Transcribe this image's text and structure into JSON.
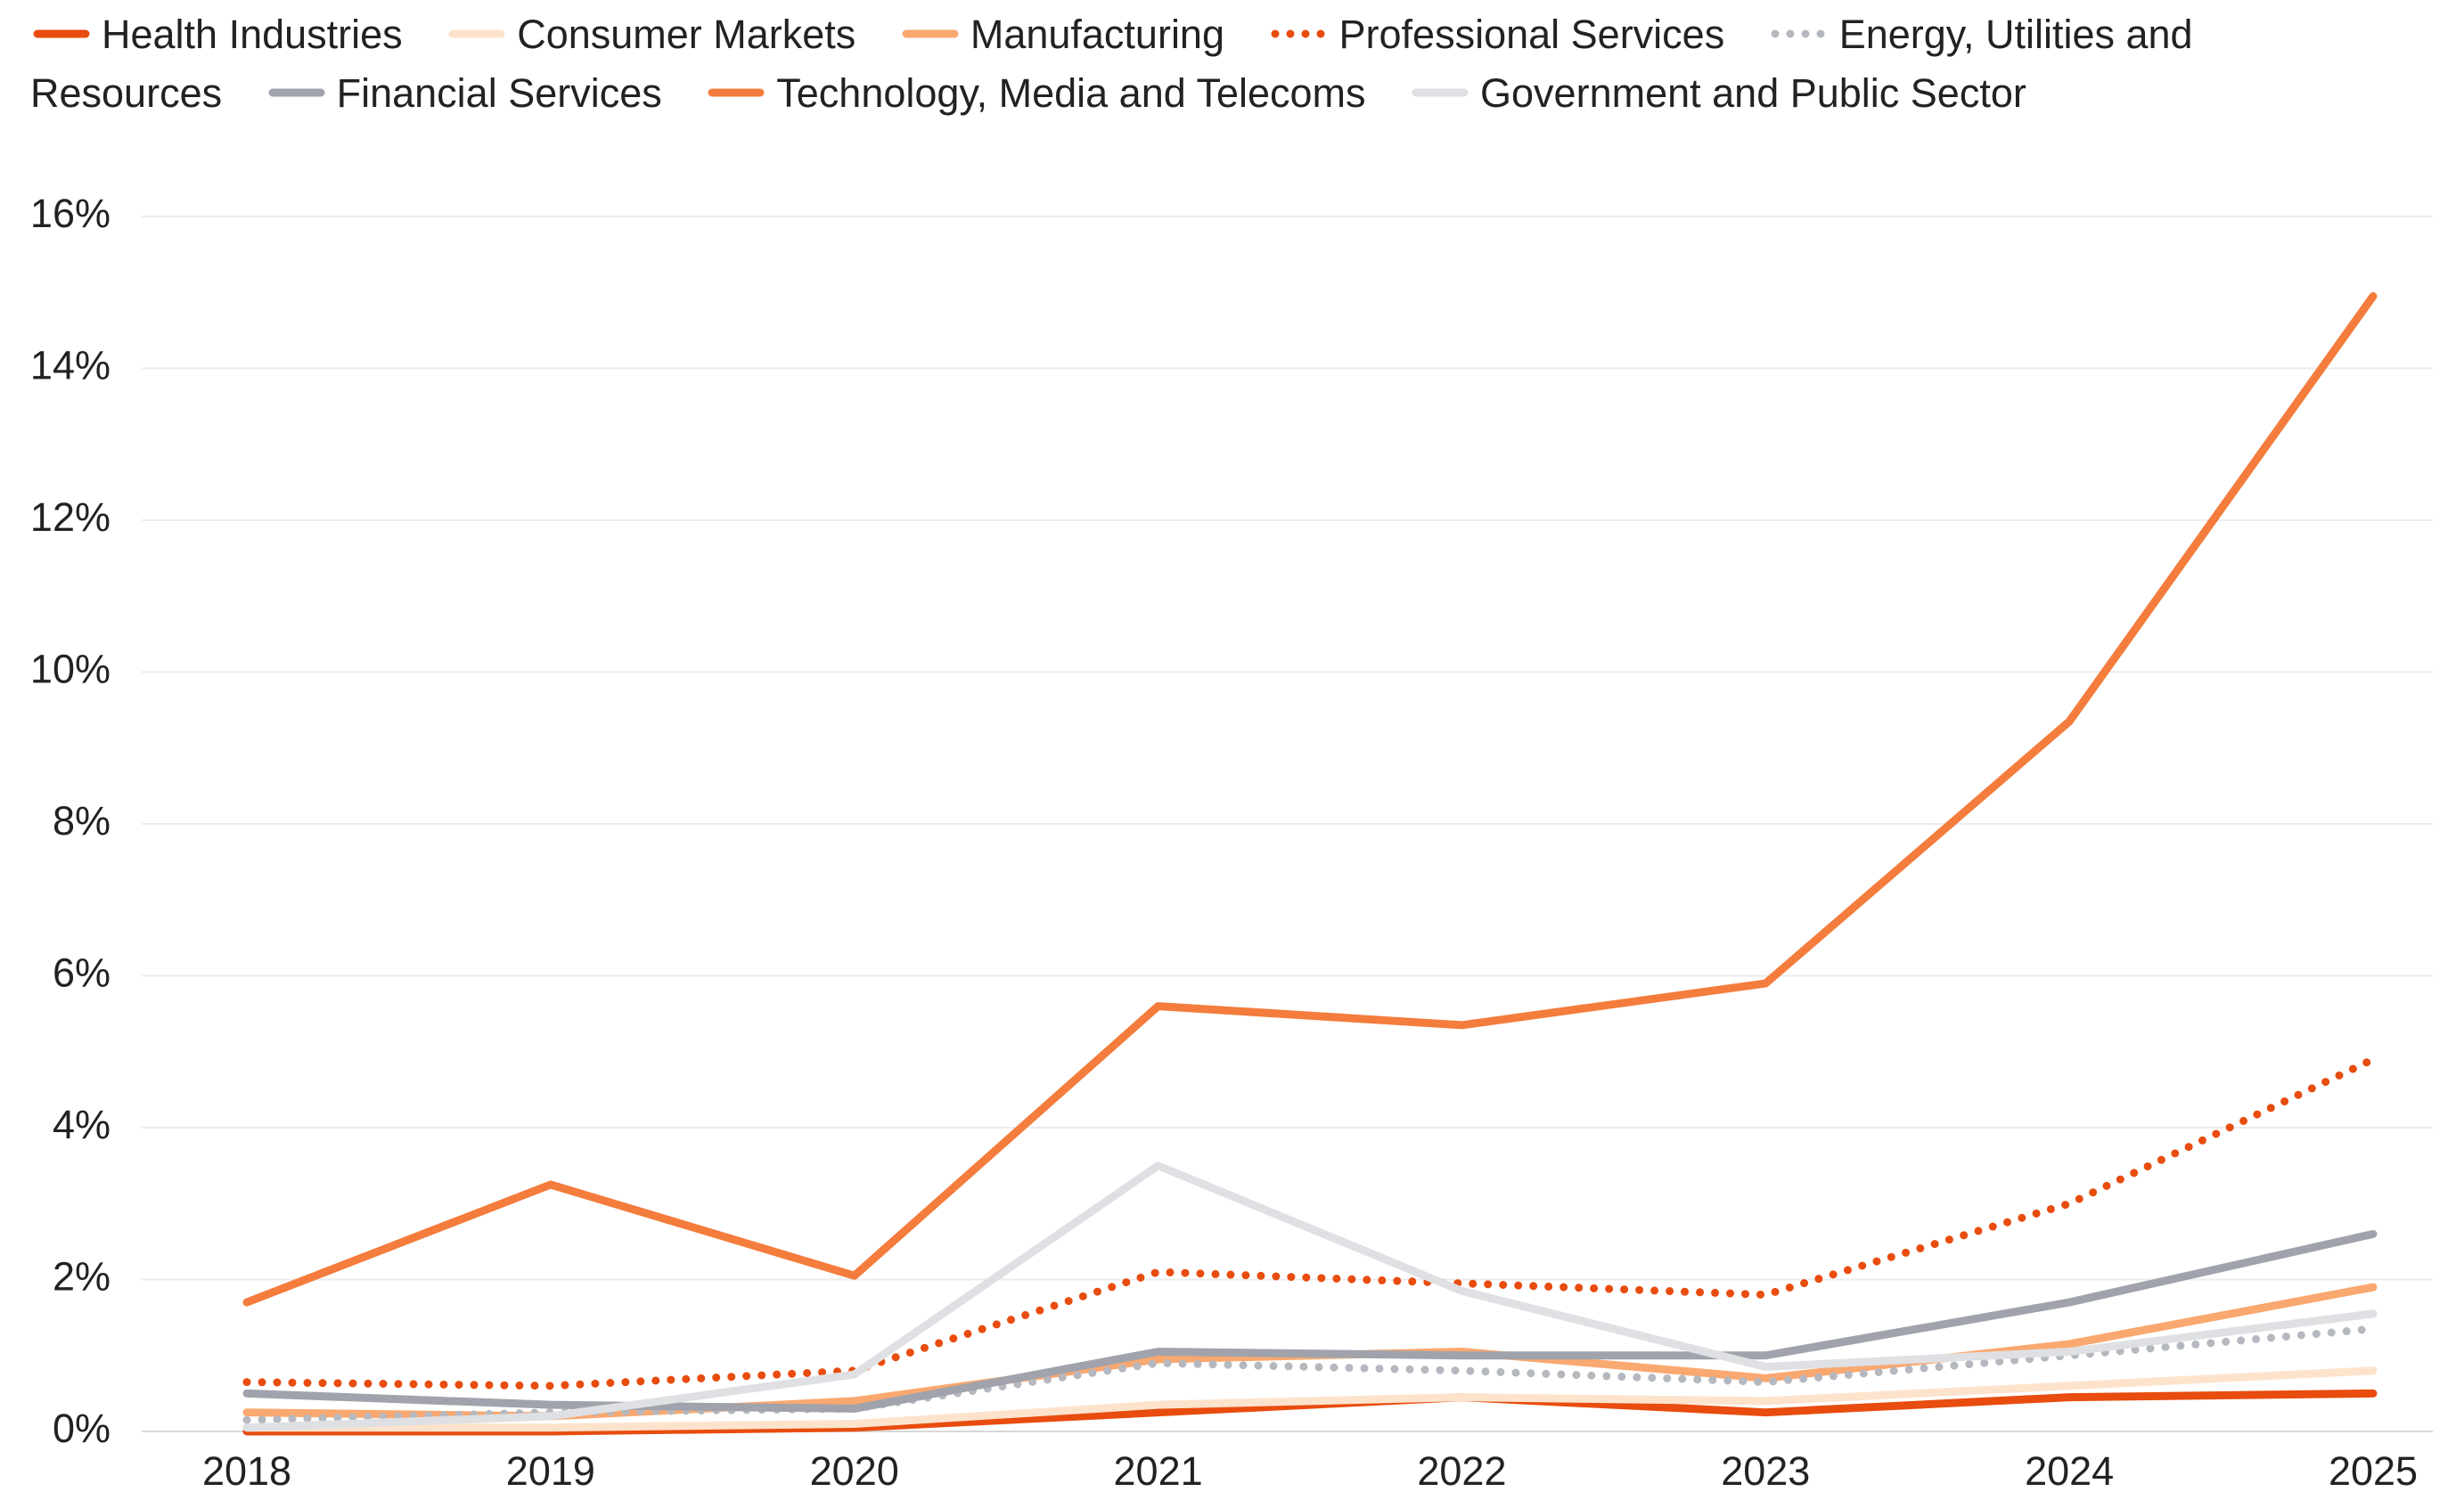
{
  "chart_data": {
    "type": "line",
    "categories": [
      "2018",
      "2019",
      "2020",
      "2021",
      "2022",
      "2023",
      "2024",
      "2025"
    ],
    "series": [
      {
        "name": "Health Industries",
        "color": "#e84c0e",
        "dotted": false,
        "values": [
          0,
          0,
          0.05,
          0.25,
          0.45,
          0.25,
          0.45,
          0.5
        ]
      },
      {
        "name": "Consumer Markets",
        "color": "#fde3cc",
        "dotted": false,
        "values": [
          0.05,
          0.05,
          0.1,
          0.35,
          0.45,
          0.4,
          0.6,
          0.8
        ]
      },
      {
        "name": "Manufacturing",
        "color": "#f9a870",
        "dotted": false,
        "values": [
          0.25,
          0.2,
          0.4,
          0.95,
          1.05,
          0.7,
          1.15,
          1.9
        ]
      },
      {
        "name": "Professional Services",
        "color": "#e84c0e",
        "dotted": true,
        "values": [
          0.65,
          0.6,
          0.8,
          2.1,
          1.95,
          1.8,
          3.0,
          4.9
        ]
      },
      {
        "name": "Energy, Utilities and Resources",
        "color": "#b5b8bf",
        "dotted": true,
        "values": [
          0.15,
          0.25,
          0.3,
          0.9,
          0.8,
          0.65,
          1.0,
          1.35
        ]
      },
      {
        "name": "Financial Services",
        "color": "#a0a3ab",
        "dotted": false,
        "values": [
          0.5,
          0.35,
          0.3,
          1.05,
          1.0,
          1.0,
          1.7,
          2.6
        ]
      },
      {
        "name": "Technology, Media and Telecoms",
        "color": "#f47c3c",
        "dotted": false,
        "values": [
          1.7,
          3.25,
          2.05,
          5.6,
          5.35,
          5.9,
          9.35,
          14.95
        ]
      },
      {
        "name": "Government and Public Sector",
        "color": "#dfe0e3",
        "dotted": false,
        "values": [
          0.05,
          0.2,
          0.75,
          3.5,
          1.85,
          0.85,
          1.05,
          1.55
        ]
      }
    ],
    "ylim": [
      0,
      16
    ],
    "yticks": [
      {
        "value": 0,
        "label": "0%"
      },
      {
        "value": 2,
        "label": "2%"
      },
      {
        "value": 4,
        "label": "4%"
      },
      {
        "value": 6,
        "label": "6%"
      },
      {
        "value": 8,
        "label": "8%"
      },
      {
        "value": 10,
        "label": "10%"
      },
      {
        "value": 12,
        "label": "12%"
      },
      {
        "value": 14,
        "label": "14%"
      },
      {
        "value": 16,
        "label": "16%"
      }
    ],
    "grid": true,
    "legend": "top"
  }
}
